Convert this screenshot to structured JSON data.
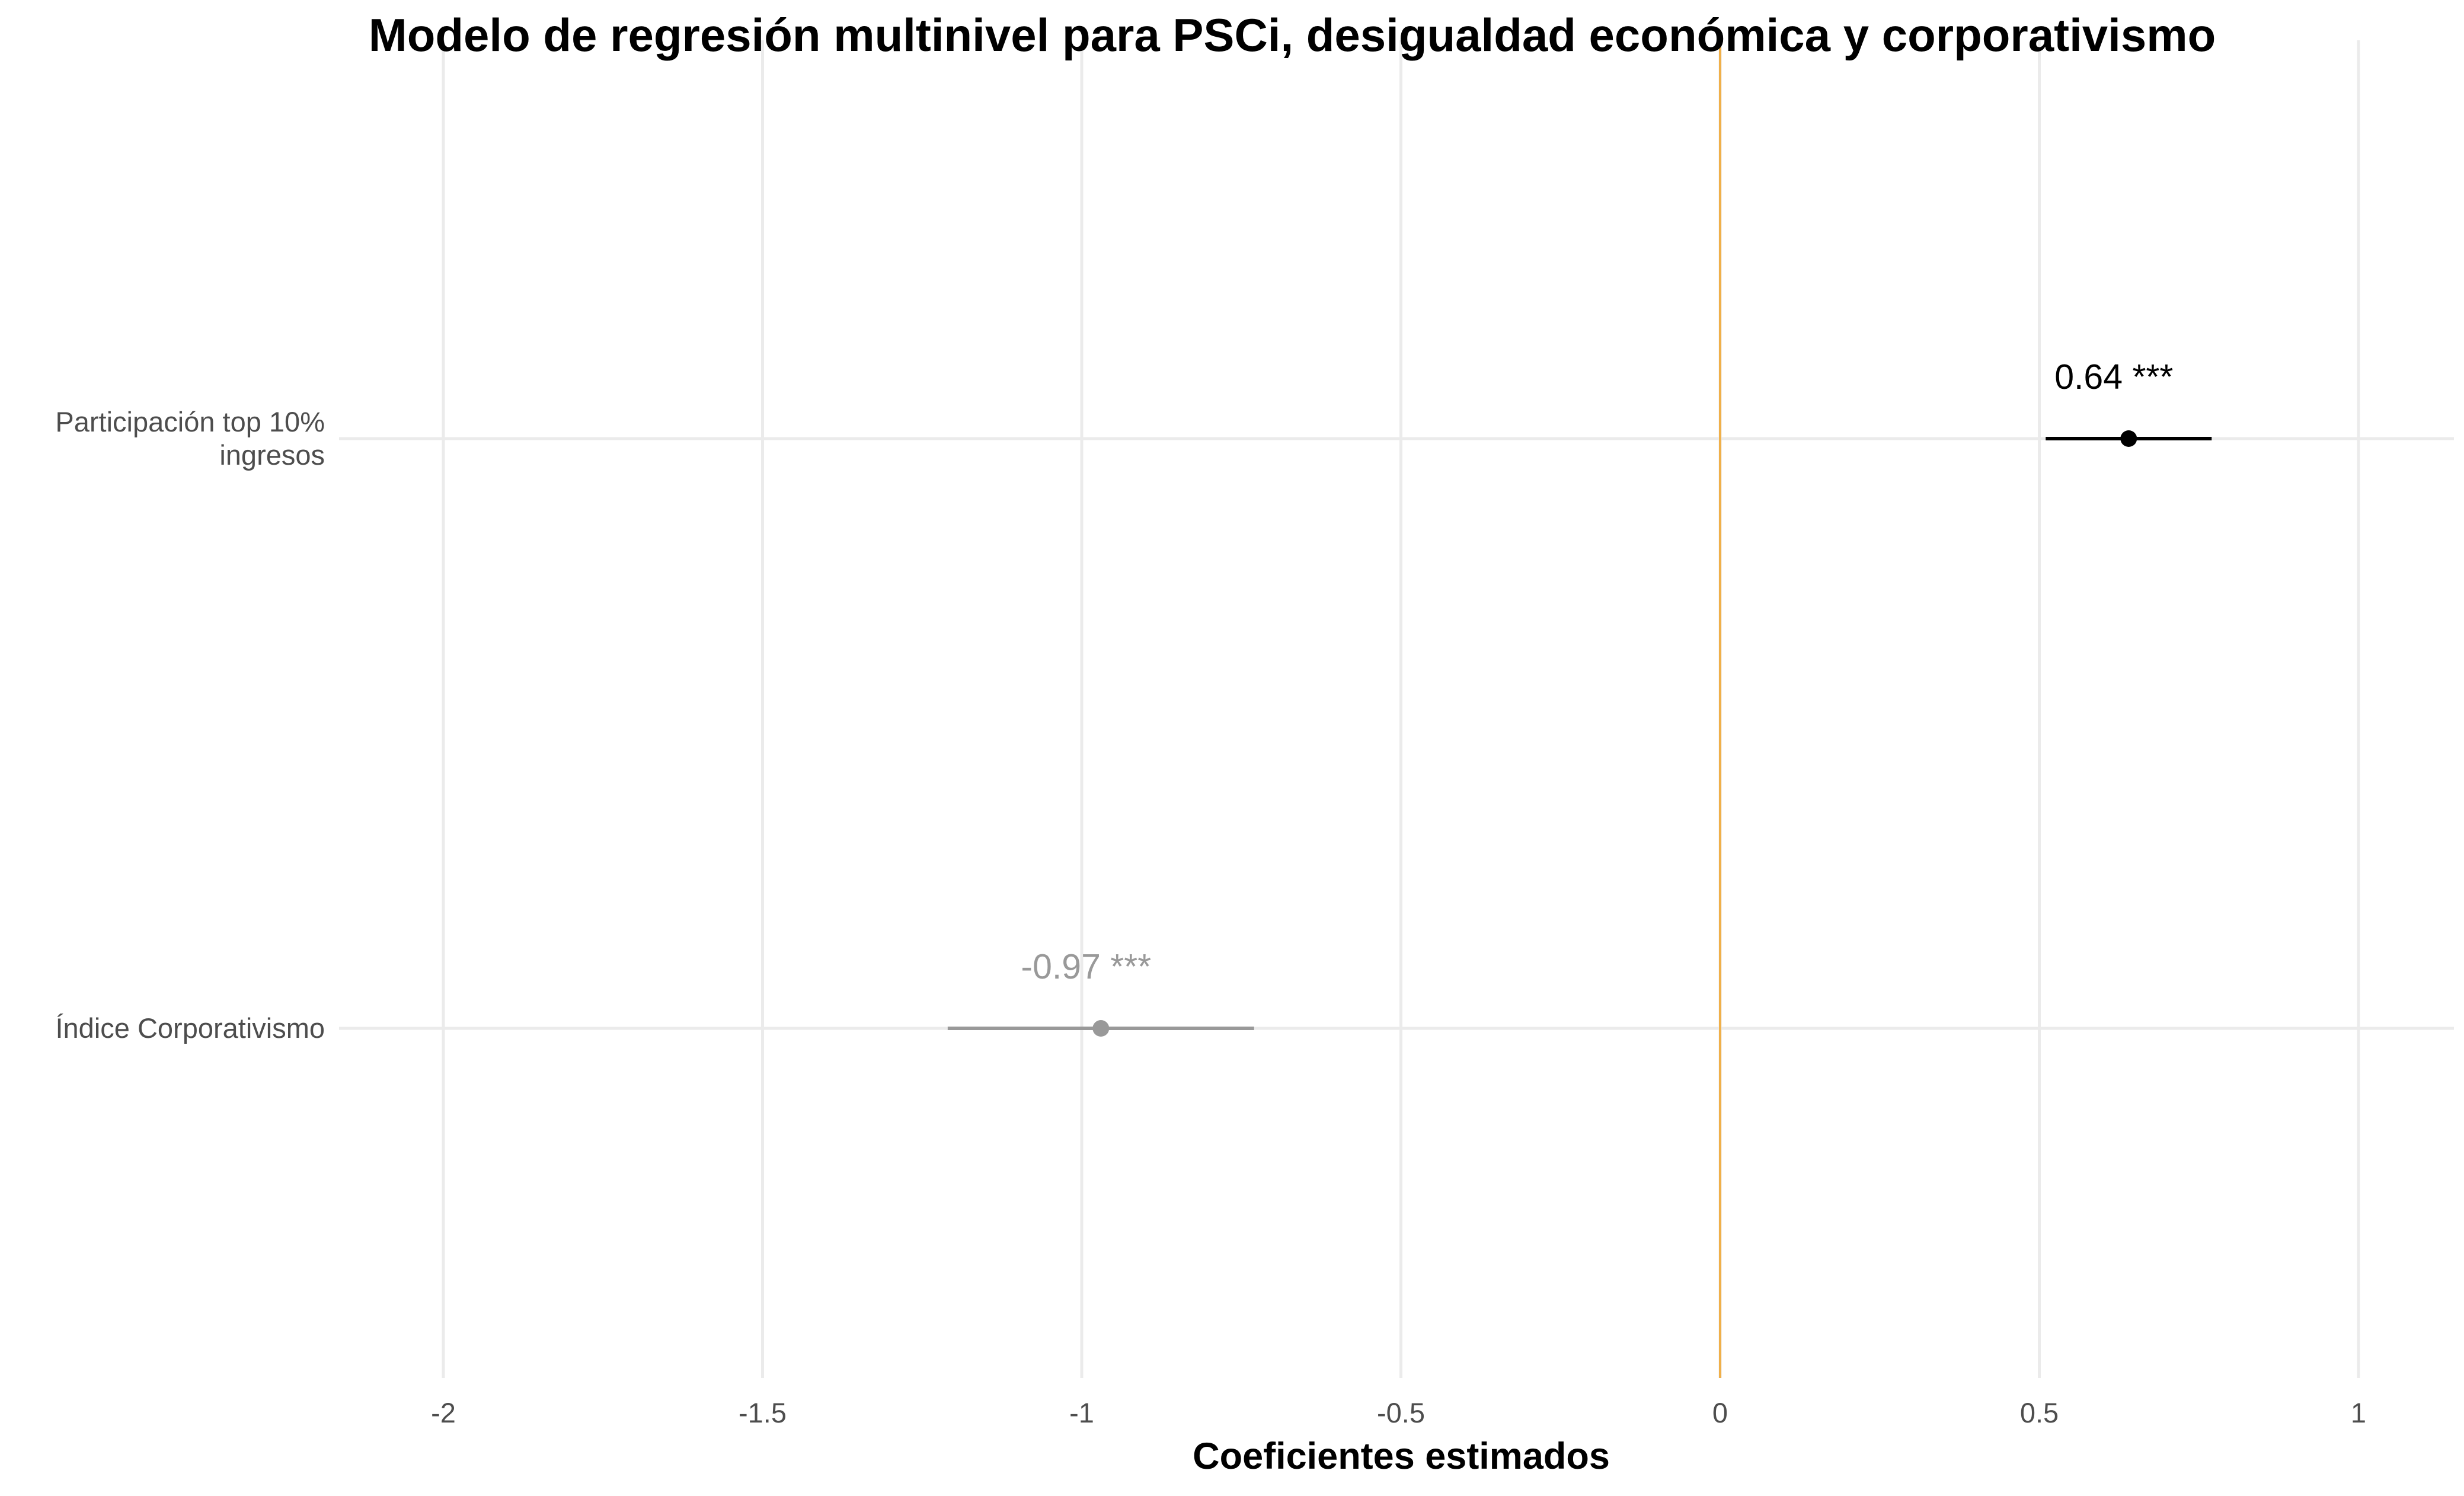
{
  "chart_data": {
    "type": "scatter",
    "title": "Modelo de regresión multinivel para PSCi, desigualdad económica y corporativismo",
    "xlabel": "Coeficientes estimados",
    "ylabel": "",
    "xlim": [
      -2.15,
      1.15
    ],
    "xticks": [
      -2,
      -1.5,
      -1,
      -0.5,
      0,
      0.5,
      1
    ],
    "xtick_labels": [
      "-2",
      "-1.5",
      "-1",
      "-0.5",
      "0",
      "0.5",
      "1"
    ],
    "grid": true,
    "reference_line": {
      "x": 0,
      "color": "#f0b04a"
    },
    "series": [
      {
        "category_lines": [
          "Participación top 10%",
          "ingresos"
        ],
        "estimate": 0.64,
        "ci_low": 0.51,
        "ci_high": 0.77,
        "label": "0.64 ***",
        "color": "#000000"
      },
      {
        "category_lines": [
          "Índice Corporativismo"
        ],
        "estimate": -0.97,
        "ci_low": -1.21,
        "ci_high": -0.73,
        "label": "-0.97 ***",
        "color": "#999999"
      }
    ]
  },
  "colors": {
    "grid": "#ebebeb",
    "axis_text": "#4d4d4d",
    "title": "#000000"
  }
}
